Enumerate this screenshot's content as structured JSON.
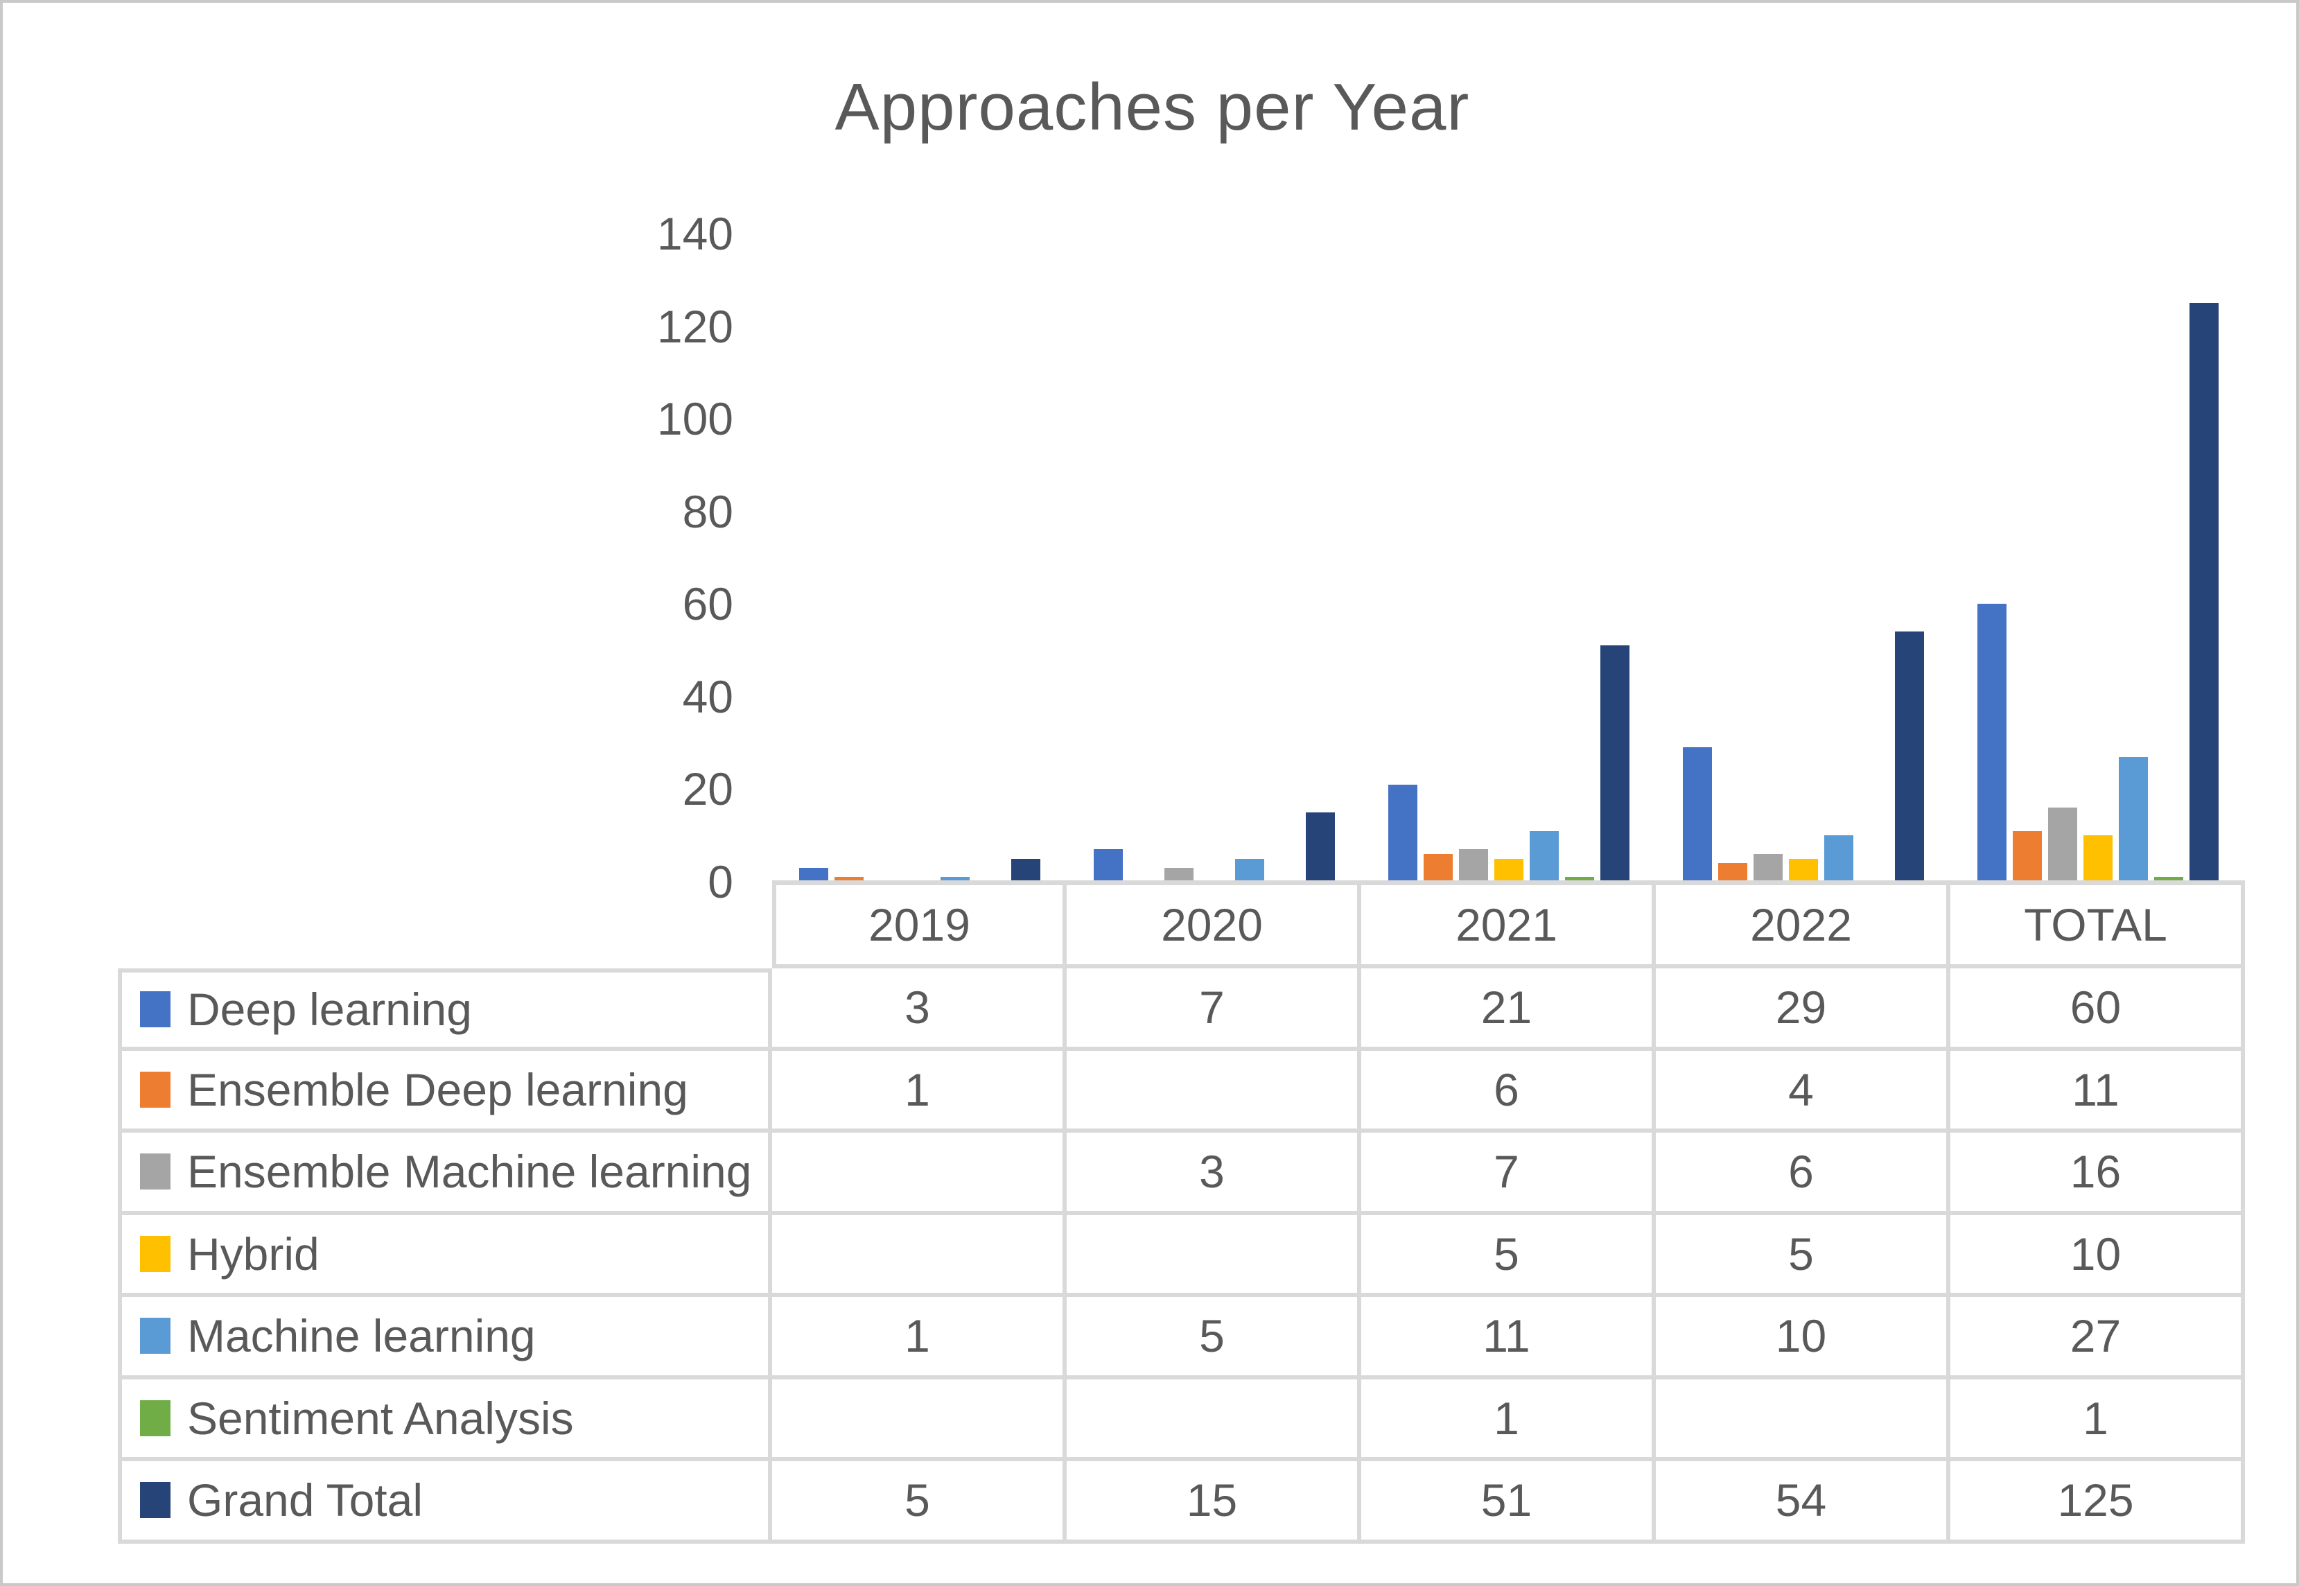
{
  "chart_data": {
    "type": "bar",
    "title": "Approaches per Year",
    "categories": [
      "2019",
      "2020",
      "2021",
      "2022",
      "TOTAL"
    ],
    "series": [
      {
        "name": "Deep learning",
        "color": "#4472C4",
        "values": [
          3,
          7,
          21,
          29,
          60
        ]
      },
      {
        "name": "Ensemble Deep learning",
        "color": "#ED7D31",
        "values": [
          1,
          null,
          6,
          4,
          11
        ]
      },
      {
        "name": "Ensemble Machine learning",
        "color": "#A5A5A5",
        "values": [
          null,
          3,
          7,
          6,
          16
        ]
      },
      {
        "name": "Hybrid",
        "color": "#FFC000",
        "values": [
          null,
          null,
          5,
          5,
          10
        ]
      },
      {
        "name": "Machine learning",
        "color": "#5B9BD5",
        "values": [
          1,
          5,
          11,
          10,
          27
        ]
      },
      {
        "name": "Sentiment Analysis",
        "color": "#70AD47",
        "values": [
          null,
          null,
          1,
          null,
          1
        ]
      },
      {
        "name": "Grand Total",
        "color": "#264478",
        "values": [
          5,
          15,
          51,
          54,
          125
        ]
      }
    ],
    "ylim": [
      0,
      140
    ],
    "yticks": [
      0,
      20,
      40,
      60,
      80,
      100,
      120,
      140
    ],
    "grid": false,
    "legend_position": "table-left-column",
    "text_color": "#595959",
    "border_color": "#D9D9D9"
  }
}
